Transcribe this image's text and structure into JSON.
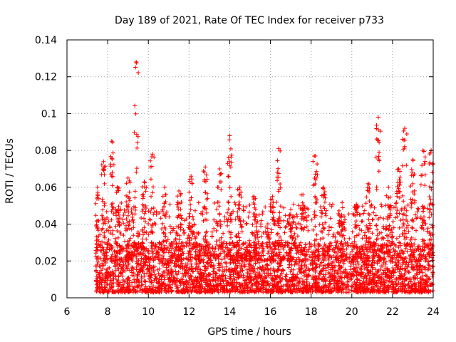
{
  "chart_data": {
    "type": "scatter",
    "title": "Day 189 of 2021, Rate Of TEC Index for receiver p733",
    "xlabel": "GPS time / hours",
    "ylabel": "ROTI / TECUs",
    "xlim": [
      6,
      24
    ],
    "ylim": [
      0,
      0.14
    ],
    "xticks": [
      "6",
      "8",
      "10",
      "12",
      "14",
      "16",
      "18",
      "20",
      "22",
      "24"
    ],
    "yticks": [
      "0",
      "0.02",
      "0.04",
      "0.06",
      "0.08",
      "0.1",
      "0.12",
      "0.14"
    ],
    "grid": true,
    "marker": "+",
    "color": "#ff0000",
    "series": [
      {
        "name": "ROTI p733",
        "x_range": [
          7.4,
          24.0
        ],
        "typical_y_range": [
          0.003,
          0.03
        ],
        "peaks": [
          {
            "x": 7.5,
            "y": 0.06
          },
          {
            "x": 7.8,
            "y": 0.074
          },
          {
            "x": 8.2,
            "y": 0.085
          },
          {
            "x": 8.5,
            "y": 0.06
          },
          {
            "x": 9.0,
            "y": 0.065
          },
          {
            "x": 9.4,
            "y": 0.128
          },
          {
            "x": 9.8,
            "y": 0.063
          },
          {
            "x": 10.2,
            "y": 0.078
          },
          {
            "x": 10.8,
            "y": 0.06
          },
          {
            "x": 11.5,
            "y": 0.058
          },
          {
            "x": 12.1,
            "y": 0.066
          },
          {
            "x": 12.8,
            "y": 0.071
          },
          {
            "x": 13.5,
            "y": 0.07
          },
          {
            "x": 14.0,
            "y": 0.088
          },
          {
            "x": 14.5,
            "y": 0.06
          },
          {
            "x": 15.2,
            "y": 0.055
          },
          {
            "x": 16.1,
            "y": 0.055
          },
          {
            "x": 16.4,
            "y": 0.081
          },
          {
            "x": 17.0,
            "y": 0.048
          },
          {
            "x": 17.6,
            "y": 0.056
          },
          {
            "x": 18.2,
            "y": 0.077
          },
          {
            "x": 18.6,
            "y": 0.06
          },
          {
            "x": 19.5,
            "y": 0.045
          },
          {
            "x": 20.2,
            "y": 0.05
          },
          {
            "x": 20.8,
            "y": 0.062
          },
          {
            "x": 21.3,
            "y": 0.098
          },
          {
            "x": 21.8,
            "y": 0.06
          },
          {
            "x": 22.3,
            "y": 0.07
          },
          {
            "x": 22.6,
            "y": 0.092
          },
          {
            "x": 23.0,
            "y": 0.075
          },
          {
            "x": 23.5,
            "y": 0.08
          },
          {
            "x": 23.9,
            "y": 0.08
          }
        ]
      }
    ]
  }
}
